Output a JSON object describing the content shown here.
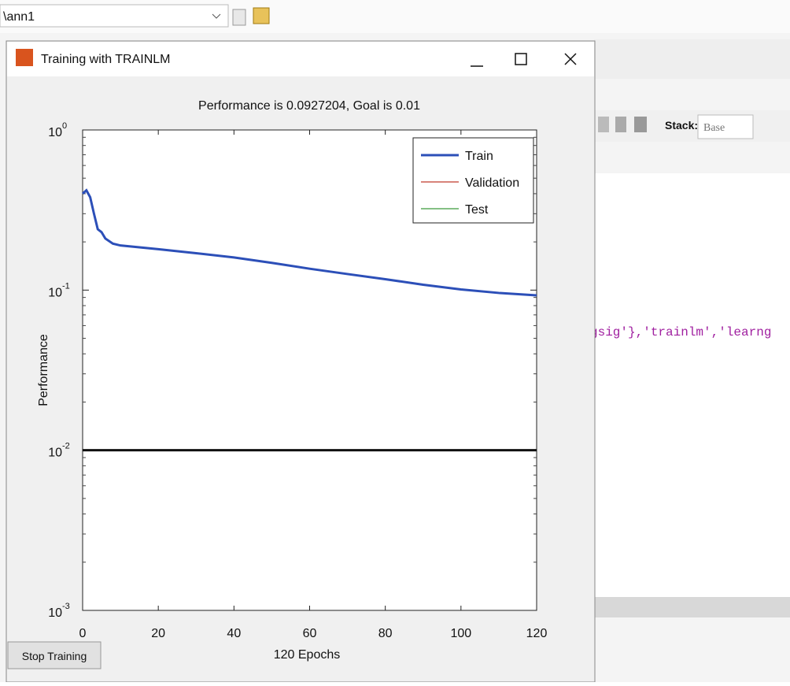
{
  "toolbar": {
    "path": "\\ann1"
  },
  "editor": {
    "stack_label": "Stack:",
    "stack_value": "Base",
    "code": "gsig'},'trainlm','learng"
  },
  "window": {
    "title": "Training with TRAINLM",
    "button": "Stop Training"
  },
  "chart_data": {
    "type": "line",
    "title": "Performance is 0.0927204, Goal is 0.01",
    "xlabel": "120 Epochs",
    "ylabel": "Performance",
    "log_y": true,
    "xlim": [
      0,
      120
    ],
    "ylim": [
      0.001,
      1
    ],
    "xticks": [
      0,
      20,
      40,
      60,
      80,
      100,
      120
    ],
    "yticks": [
      {
        "value": 0.001,
        "label": "10",
        "exp": "-3"
      },
      {
        "value": 0.01,
        "label": "10",
        "exp": "-2"
      },
      {
        "value": 0.1,
        "label": "10",
        "exp": "-1"
      },
      {
        "value": 1,
        "label": "10",
        "exp": "0"
      }
    ],
    "x": [
      0,
      1,
      2,
      3,
      4,
      5,
      6,
      8,
      10,
      20,
      30,
      40,
      50,
      60,
      70,
      80,
      90,
      100,
      110,
      120
    ],
    "series": [
      {
        "name": "Train",
        "color": "#2c4fb8",
        "values": [
          0.4,
          0.42,
          0.38,
          0.3,
          0.24,
          0.23,
          0.21,
          0.195,
          0.19,
          0.18,
          0.17,
          0.16,
          0.148,
          0.136,
          0.126,
          0.117,
          0.108,
          0.101,
          0.096,
          0.0927204
        ]
      },
      {
        "name": "Validation",
        "color": "#c0392b",
        "values": [
          null,
          null,
          null,
          null,
          null,
          null,
          null,
          null,
          null,
          null,
          null,
          null,
          null,
          null,
          null,
          null,
          null,
          null,
          null,
          null
        ]
      },
      {
        "name": "Test",
        "color": "#3a9a3a",
        "values": [
          null,
          null,
          null,
          null,
          null,
          null,
          null,
          null,
          null,
          null,
          null,
          null,
          null,
          null,
          null,
          null,
          null,
          null,
          null,
          null
        ]
      }
    ],
    "goal_line": {
      "value": 0.01,
      "color": "#111111"
    },
    "legend": "top-right"
  }
}
